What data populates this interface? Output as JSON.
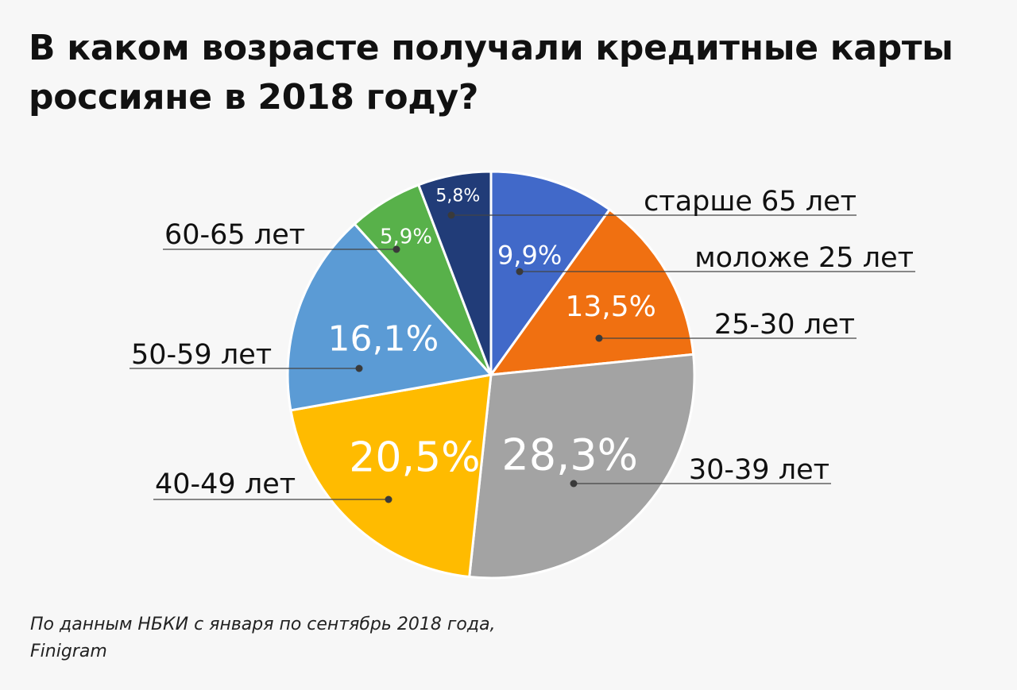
{
  "header": {
    "title_line1": "В каком возрасте получали кредитные карты",
    "title_line2": "россияне в 2018 году?"
  },
  "footer": {
    "source_line1": "По данным НБКИ с января по сентябрь 2018 года,",
    "source_line2": "Finigram"
  },
  "chart_data": {
    "type": "pie",
    "title": "В каком возрасте получали кредитные карты россияне в 2018 году?",
    "categories": [
      "моложе 25 лет",
      "25-30 лет",
      "30-39 лет",
      "40-49 лет",
      "50-59 лет",
      "60-65 лет",
      "старше 65 лет"
    ],
    "values": [
      9.9,
      13.5,
      28.3,
      20.5,
      16.1,
      5.9,
      5.8
    ],
    "value_labels": [
      "9,9%",
      "13,5%",
      "28,3%",
      "20,5%",
      "16,1%",
      "5,9%",
      "5,8%"
    ],
    "colors": [
      "#4169c9",
      "#f07011",
      "#a3a3a3",
      "#ffbb00",
      "#5b9bd5",
      "#58b14a",
      "#213c78"
    ],
    "start": "12 o'clock",
    "direction": "clockwise",
    "legend": "none"
  }
}
